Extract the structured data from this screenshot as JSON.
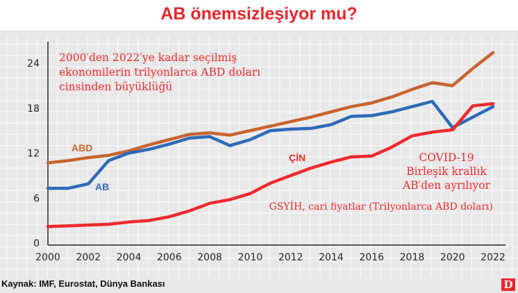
{
  "chart_data": {
    "type": "line",
    "title": "AB önemsizleşiyor mu?",
    "subtitle": "2000'den 2022'ye kadar seçilmiş ekonomilerin trilyonlarca ABD doları cinsinden büyüklüğü",
    "subtitle_lines": [
      "2000′den 2022′ye kadar seçilmiş",
      "ekonomilerin trilyonlarca ABD doları",
      "cinsinden büyüklüğü"
    ],
    "ylabel_note": "GSYİH, cari fiyatlar (Trilyonlarca ABD doları)",
    "annotation_lines": [
      "COVID-19",
      "Birleşik krallık",
      "AB′den ayrılıyor"
    ],
    "x": [
      2000,
      2001,
      2002,
      2003,
      2004,
      2005,
      2006,
      2007,
      2008,
      2009,
      2010,
      2011,
      2012,
      2013,
      2014,
      2015,
      2016,
      2017,
      2018,
      2019,
      2020,
      2021,
      2022
    ],
    "xticks": [
      "2000",
      "2002",
      "2004",
      "2006",
      "2008",
      "2010",
      "2012",
      "2014",
      "2016",
      "2018",
      "2020",
      "2022"
    ],
    "yticks": [
      "0",
      "6",
      "12",
      "18",
      "24"
    ],
    "xlim": [
      2000,
      2022.5
    ],
    "ylim": [
      0,
      26.5
    ],
    "grid": true,
    "series": [
      {
        "name": "ABD",
        "color": "#c8642f",
        "values": [
          10.7,
          11.0,
          11.4,
          11.7,
          12.3,
          13.1,
          13.8,
          14.5,
          14.7,
          14.4,
          15.0,
          15.6,
          16.2,
          16.8,
          17.5,
          18.2,
          18.7,
          19.5,
          20.5,
          21.4,
          21.0,
          23.3,
          25.4
        ]
      },
      {
        "name": "AB",
        "color": "#2f6ab8",
        "values": [
          7.3,
          7.3,
          7.9,
          11.0,
          12.0,
          12.5,
          13.2,
          14.0,
          14.2,
          13.0,
          13.8,
          15.0,
          15.2,
          15.3,
          15.8,
          16.9,
          17.0,
          17.5,
          18.2,
          18.9,
          15.4,
          16.8,
          18.2
        ]
      },
      {
        "name": "ÇİN",
        "color": "#ee2a2e",
        "values": [
          2.2,
          2.3,
          2.4,
          2.5,
          2.8,
          3.0,
          3.5,
          4.3,
          5.3,
          5.8,
          6.6,
          8.0,
          9.0,
          10.0,
          10.8,
          11.5,
          11.6,
          12.8,
          14.3,
          14.8,
          15.1,
          18.3,
          18.6
        ]
      }
    ]
  },
  "footer": {
    "source": "Kaynak: IMF, Eurostat, Dünya Bankası",
    "logo": "D"
  }
}
